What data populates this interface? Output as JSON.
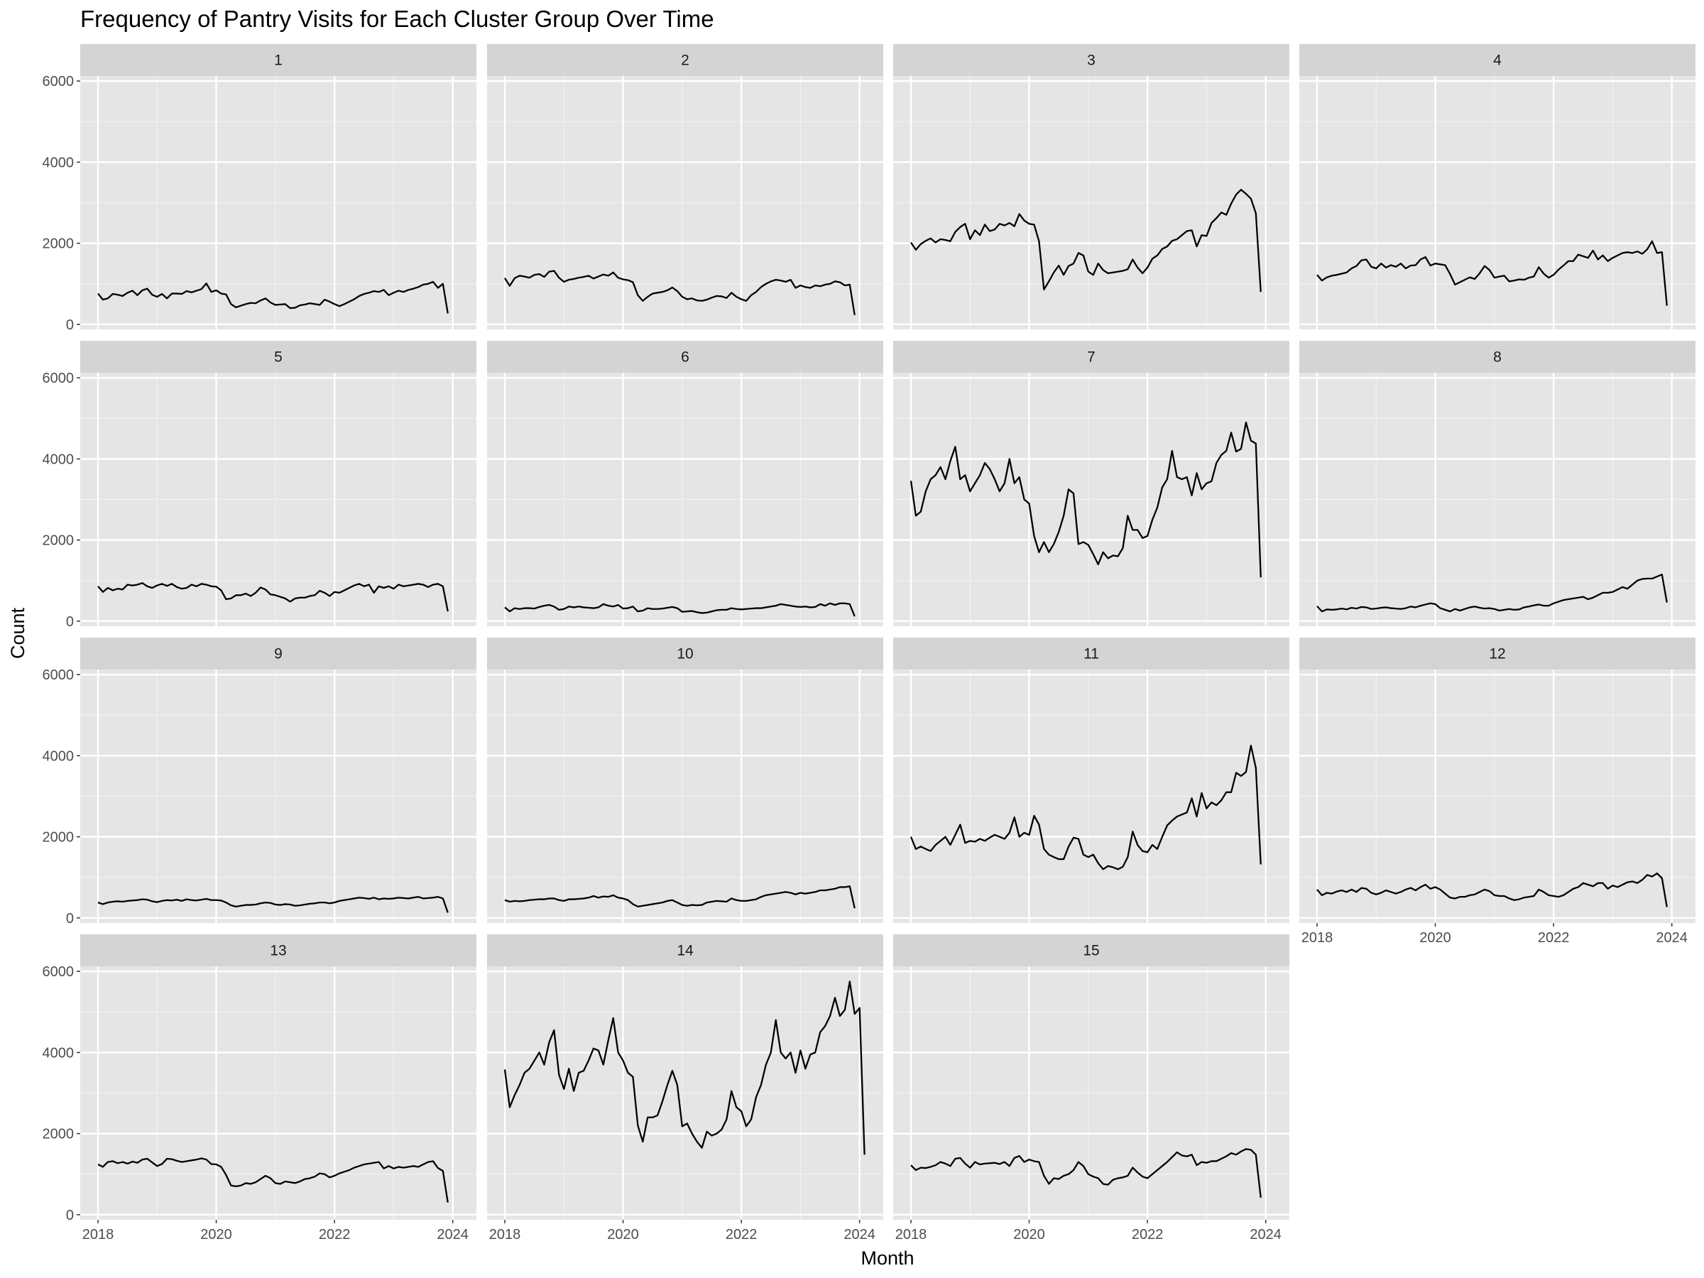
{
  "chart_data": {
    "type": "line",
    "title": "Frequency of Pantry Visits for Each Cluster Group Over Time",
    "xlabel": "Month",
    "ylabel": "Count",
    "layout": "facet_wrap",
    "facet_columns": 4,
    "ylim": [
      0,
      6000
    ],
    "y_ticks": [
      0,
      2000,
      4000,
      6000
    ],
    "x_ticks": [
      2018,
      2020,
      2022,
      2024
    ],
    "xlim": [
      2017.7,
      2024.4
    ],
    "x_units": "year",
    "x_start": "2018-01",
    "x_step": "1 month",
    "grid": true,
    "panel_background": "#e5e5e5",
    "strip_background": "#d4d4d4",
    "line_color": "#000000",
    "series": [
      {
        "name": "1",
        "values": [
          760,
          610,
          640,
          750,
          730,
          700,
          780,
          830,
          720,
          840,
          880,
          730,
          680,
          750,
          640,
          760,
          760,
          750,
          820,
          790,
          830,
          870,
          1010,
          800,
          840,
          760,
          740,
          500,
          420,
          460,
          500,
          530,
          520,
          590,
          640,
          540,
          480,
          490,
          500,
          400,
          410,
          470,
          490,
          520,
          500,
          480,
          610,
          560,
          500,
          450,
          500,
          560,
          620,
          700,
          750,
          780,
          820,
          800,
          850,
          720,
          780,
          830,
          800,
          850,
          880,
          920,
          980,
          1000,
          1050,
          900,
          1000,
          270
        ]
      },
      {
        "name": "2",
        "values": [
          1140,
          950,
          1140,
          1200,
          1180,
          1150,
          1220,
          1240,
          1170,
          1300,
          1320,
          1150,
          1050,
          1100,
          1120,
          1150,
          1170,
          1200,
          1130,
          1180,
          1230,
          1200,
          1280,
          1150,
          1110,
          1090,
          1040,
          720,
          580,
          680,
          760,
          780,
          800,
          840,
          910,
          820,
          680,
          620,
          640,
          590,
          580,
          610,
          660,
          700,
          690,
          650,
          780,
          680,
          620,
          580,
          720,
          800,
          920,
          1000,
          1060,
          1100,
          1080,
          1050,
          1100,
          900,
          960,
          920,
          900,
          960,
          940,
          980,
          1000,
          1060,
          1040,
          960,
          980,
          230
        ]
      },
      {
        "name": "3",
        "values": [
          2020,
          1840,
          1980,
          2060,
          2120,
          2020,
          2100,
          2080,
          2050,
          2280,
          2400,
          2480,
          2100,
          2320,
          2200,
          2460,
          2300,
          2340,
          2480,
          2440,
          2500,
          2420,
          2720,
          2560,
          2480,
          2460,
          2050,
          860,
          1060,
          1280,
          1450,
          1220,
          1440,
          1500,
          1760,
          1700,
          1300,
          1220,
          1500,
          1340,
          1260,
          1280,
          1300,
          1320,
          1360,
          1600,
          1400,
          1260,
          1400,
          1620,
          1700,
          1860,
          1920,
          2060,
          2100,
          2200,
          2300,
          2320,
          1920,
          2200,
          2180,
          2500,
          2620,
          2760,
          2700,
          2980,
          3200,
          3320,
          3220,
          3100,
          2740,
          800
        ]
      },
      {
        "name": "4",
        "values": [
          1220,
          1080,
          1160,
          1200,
          1220,
          1250,
          1280,
          1380,
          1440,
          1580,
          1600,
          1420,
          1380,
          1500,
          1400,
          1460,
          1420,
          1500,
          1380,
          1450,
          1460,
          1600,
          1660,
          1450,
          1500,
          1480,
          1460,
          1240,
          980,
          1040,
          1100,
          1160,
          1120,
          1260,
          1440,
          1340,
          1150,
          1180,
          1200,
          1060,
          1080,
          1110,
          1100,
          1150,
          1180,
          1410,
          1250,
          1150,
          1220,
          1350,
          1450,
          1560,
          1560,
          1720,
          1680,
          1640,
          1820,
          1600,
          1700,
          1560,
          1640,
          1700,
          1760,
          1780,
          1760,
          1800,
          1740,
          1850,
          2050,
          1760,
          1780,
          460
        ]
      },
      {
        "name": "5",
        "values": [
          860,
          720,
          820,
          760,
          800,
          780,
          900,
          880,
          900,
          940,
          860,
          820,
          880,
          920,
          870,
          920,
          840,
          800,
          820,
          900,
          860,
          920,
          900,
          860,
          850,
          760,
          540,
          560,
          640,
          640,
          680,
          620,
          700,
          830,
          780,
          660,
          640,
          600,
          560,
          480,
          560,
          580,
          580,
          620,
          640,
          750,
          700,
          620,
          720,
          700,
          760,
          820,
          880,
          920,
          860,
          900,
          700,
          860,
          820,
          860,
          800,
          900,
          860,
          880,
          900,
          920,
          900,
          840,
          900,
          920,
          860,
          240
        ]
      },
      {
        "name": "6",
        "values": [
          340,
          240,
          320,
          300,
          320,
          320,
          310,
          350,
          380,
          400,
          360,
          280,
          300,
          360,
          340,
          360,
          340,
          330,
          320,
          340,
          420,
          380,
          360,
          400,
          310,
          320,
          360,
          240,
          260,
          320,
          300,
          300,
          310,
          330,
          350,
          320,
          230,
          240,
          250,
          220,
          200,
          210,
          240,
          270,
          280,
          280,
          320,
          300,
          290,
          300,
          310,
          320,
          320,
          340,
          360,
          380,
          420,
          400,
          380,
          360,
          350,
          360,
          340,
          350,
          420,
          380,
          440,
          400,
          440,
          440,
          420,
          120
        ]
      },
      {
        "name": "7",
        "values": [
          3460,
          2600,
          2700,
          3200,
          3500,
          3600,
          3800,
          3500,
          3950,
          4300,
          3500,
          3600,
          3200,
          3400,
          3600,
          3900,
          3750,
          3500,
          3200,
          3400,
          4000,
          3400,
          3550,
          3000,
          2900,
          2100,
          1700,
          1950,
          1700,
          1900,
          2200,
          2600,
          3250,
          3150,
          1900,
          1950,
          1880,
          1650,
          1400,
          1700,
          1550,
          1620,
          1600,
          1800,
          2600,
          2250,
          2250,
          2050,
          2100,
          2500,
          2800,
          3300,
          3500,
          4200,
          3550,
          3500,
          3550,
          3100,
          3650,
          3250,
          3400,
          3450,
          3900,
          4100,
          4200,
          4650,
          4180,
          4250,
          4900,
          4450,
          4380,
          1080
        ]
      },
      {
        "name": "8",
        "values": [
          370,
          240,
          290,
          280,
          290,
          310,
          290,
          330,
          310,
          350,
          340,
          300,
          310,
          330,
          340,
          320,
          310,
          300,
          320,
          360,
          340,
          380,
          410,
          440,
          420,
          320,
          280,
          240,
          300,
          260,
          300,
          340,
          360,
          330,
          310,
          320,
          300,
          260,
          280,
          300,
          280,
          290,
          340,
          360,
          390,
          410,
          380,
          380,
          440,
          480,
          520,
          540,
          560,
          580,
          600,
          540,
          580,
          640,
          700,
          700,
          720,
          780,
          840,
          800,
          900,
          1000,
          1040,
          1050,
          1050,
          1100,
          1150,
          460
        ]
      },
      {
        "name": "9",
        "values": [
          380,
          340,
          380,
          400,
          410,
          400,
          420,
          430,
          440,
          460,
          450,
          410,
          390,
          420,
          440,
          430,
          450,
          420,
          460,
          440,
          430,
          450,
          470,
          440,
          440,
          430,
          380,
          310,
          280,
          300,
          320,
          320,
          330,
          360,
          380,
          370,
          330,
          320,
          340,
          330,
          300,
          310,
          330,
          350,
          360,
          380,
          380,
          360,
          380,
          420,
          440,
          460,
          480,
          500,
          490,
          470,
          500,
          460,
          480,
          470,
          480,
          500,
          490,
          480,
          500,
          520,
          480,
          490,
          500,
          520,
          480,
          130
        ]
      },
      {
        "name": "10",
        "values": [
          440,
          400,
          420,
          410,
          420,
          440,
          450,
          460,
          460,
          480,
          480,
          440,
          420,
          460,
          460,
          470,
          480,
          500,
          540,
          500,
          530,
          520,
          560,
          500,
          480,
          440,
          340,
          280,
          300,
          320,
          340,
          360,
          380,
          420,
          440,
          380,
          320,
          300,
          320,
          310,
          320,
          380,
          400,
          420,
          410,
          400,
          480,
          440,
          420,
          420,
          440,
          460,
          520,
          560,
          580,
          600,
          620,
          640,
          620,
          580,
          620,
          600,
          620,
          640,
          680,
          680,
          700,
          720,
          760,
          760,
          780,
          240
        ]
      },
      {
        "name": "11",
        "values": [
          2000,
          1700,
          1760,
          1700,
          1650,
          1800,
          1900,
          2000,
          1800,
          2050,
          2300,
          1850,
          1900,
          1880,
          1950,
          1900,
          1980,
          2050,
          2000,
          1950,
          2100,
          2480,
          2000,
          2100,
          2050,
          2520,
          2300,
          1700,
          1560,
          1500,
          1450,
          1450,
          1760,
          1980,
          1950,
          1560,
          1500,
          1560,
          1350,
          1200,
          1280,
          1250,
          1200,
          1260,
          1500,
          2130,
          1800,
          1650,
          1620,
          1800,
          1700,
          2000,
          2280,
          2400,
          2500,
          2550,
          2600,
          2950,
          2500,
          3080,
          2700,
          2850,
          2780,
          2900,
          3100,
          3100,
          3580,
          3500,
          3600,
          4250,
          3700,
          1320
        ]
      },
      {
        "name": "12",
        "values": [
          700,
          560,
          620,
          600,
          650,
          680,
          640,
          700,
          640,
          740,
          720,
          620,
          580,
          620,
          680,
          640,
          600,
          640,
          700,
          740,
          680,
          760,
          820,
          720,
          760,
          700,
          600,
          500,
          480,
          520,
          520,
          560,
          580,
          640,
          700,
          660,
          560,
          540,
          540,
          480,
          440,
          460,
          500,
          520,
          540,
          700,
          640,
          560,
          540,
          520,
          560,
          640,
          720,
          760,
          860,
          820,
          780,
          860,
          860,
          720,
          800,
          760,
          820,
          880,
          900,
          860,
          940,
          1060,
          1020,
          1100,
          980,
          270
        ]
      },
      {
        "name": "13",
        "values": [
          1240,
          1180,
          1300,
          1320,
          1270,
          1300,
          1260,
          1310,
          1280,
          1360,
          1380,
          1290,
          1200,
          1250,
          1380,
          1370,
          1330,
          1300,
          1320,
          1340,
          1360,
          1390,
          1360,
          1250,
          1240,
          1180,
          980,
          720,
          700,
          720,
          780,
          760,
          800,
          880,
          960,
          900,
          780,
          760,
          820,
          800,
          780,
          820,
          880,
          900,
          940,
          1020,
          1000,
          920,
          960,
          1020,
          1060,
          1100,
          1160,
          1200,
          1240,
          1260,
          1280,
          1300,
          1140,
          1200,
          1140,
          1180,
          1160,
          1180,
          1200,
          1180,
          1240,
          1300,
          1320,
          1150,
          1080,
          300
        ]
      },
      {
        "name": "14",
        "values": [
          3580,
          2650,
          2950,
          3200,
          3500,
          3600,
          3800,
          4000,
          3700,
          4250,
          4550,
          3450,
          3100,
          3600,
          3050,
          3500,
          3550,
          3800,
          4100,
          4050,
          3700,
          4300,
          4850,
          4000,
          3800,
          3500,
          3400,
          2200,
          1800,
          2400,
          2400,
          2450,
          2800,
          3200,
          3550,
          3200,
          2180,
          2250,
          2000,
          1800,
          1650,
          2050,
          1950,
          2000,
          2100,
          2350,
          3050,
          2650,
          2550,
          2180,
          2350,
          2900,
          3200,
          3700,
          4000,
          4800,
          4000,
          3850,
          4000,
          3500,
          4050,
          3600,
          3950,
          4000,
          4500,
          4650,
          4900,
          5350,
          4900,
          5050,
          5750,
          4950,
          5100,
          1480
        ]
      },
      {
        "name": "15",
        "values": [
          1220,
          1100,
          1160,
          1150,
          1180,
          1220,
          1300,
          1260,
          1200,
          1380,
          1400,
          1260,
          1160,
          1300,
          1240,
          1260,
          1270,
          1280,
          1250,
          1300,
          1200,
          1400,
          1450,
          1300,
          1360,
          1320,
          1300,
          960,
          760,
          900,
          880,
          960,
          1000,
          1100,
          1300,
          1200,
          1000,
          940,
          900,
          760,
          740,
          860,
          900,
          920,
          960,
          1160,
          1040,
          940,
          900,
          1000,
          1100,
          1200,
          1300,
          1420,
          1540,
          1460,
          1440,
          1480,
          1220,
          1300,
          1280,
          1320,
          1320,
          1380,
          1440,
          1520,
          1480,
          1560,
          1620,
          1600,
          1480,
          420
        ]
      }
    ]
  }
}
